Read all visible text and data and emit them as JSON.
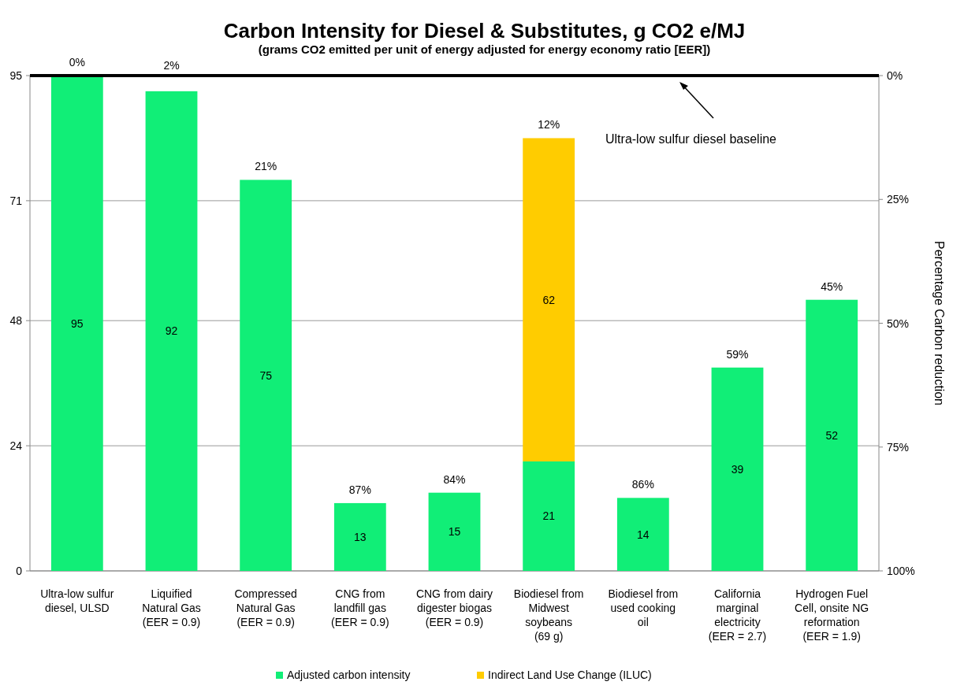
{
  "chart_data": {
    "type": "bar",
    "title": "Carbon Intensity for Diesel & Substitutes, g CO2 e/MJ",
    "subtitle": "(grams CO2 emitted per unit of energy adjusted for energy economy ratio [EER])",
    "y2label": "Percentage Carbon reduction",
    "categories": [
      "Ultra-low sulfur\ndiesel, ULSD",
      "Liquified\nNatural Gas\n(EER = 0.9)",
      "Compressed\nNatural Gas\n(EER = 0.9)",
      "CNG from\nlandfill gas\n(EER = 0.9)",
      "CNG from dairy\ndigester biogas\n(EER = 0.9)",
      "Biodiesel from\nMidwest\nsoybeans\n(69 g)",
      "Biodiesel from\nused cooking\noil",
      "California\nmarginal\nelectricity\n(EER = 2.7)",
      "Hydrogen Fuel\nCell, onsite NG\nreformation\n(EER = 1.9)"
    ],
    "series": [
      {
        "name": "Adjusted carbon intensity",
        "color": "#11ee77",
        "values": [
          95,
          92,
          75,
          13,
          15,
          21,
          14,
          39,
          52
        ]
      },
      {
        "name": "Indirect Land Use Change (ILUC)",
        "color": "#ffcc00",
        "values": [
          null,
          null,
          null,
          null,
          null,
          62,
          null,
          null,
          null
        ]
      }
    ],
    "stacked": true,
    "data_labels": true,
    "ylim": [
      0,
      95
    ],
    "yticks": [
      0,
      24,
      48,
      71,
      95
    ],
    "y2lim": [
      100,
      0
    ],
    "y2ticks": [
      {
        "value": 0,
        "label": "0%"
      },
      {
        "value": 25,
        "label": "25%"
      },
      {
        "value": 50,
        "label": "50%"
      },
      {
        "value": 75,
        "label": "75%"
      },
      {
        "value": 100,
        "label": "100%"
      }
    ],
    "annotations": [
      "0%",
      "2%",
      "21%",
      "87%",
      "84%",
      "12%",
      "86%",
      "59%",
      "45%"
    ],
    "ref_lines": [
      {
        "axis": "y",
        "value": 95,
        "label": "Ultra-low sulfur diesel baseline",
        "color": "#000000"
      }
    ],
    "grid": "y",
    "legend": "bottom"
  }
}
